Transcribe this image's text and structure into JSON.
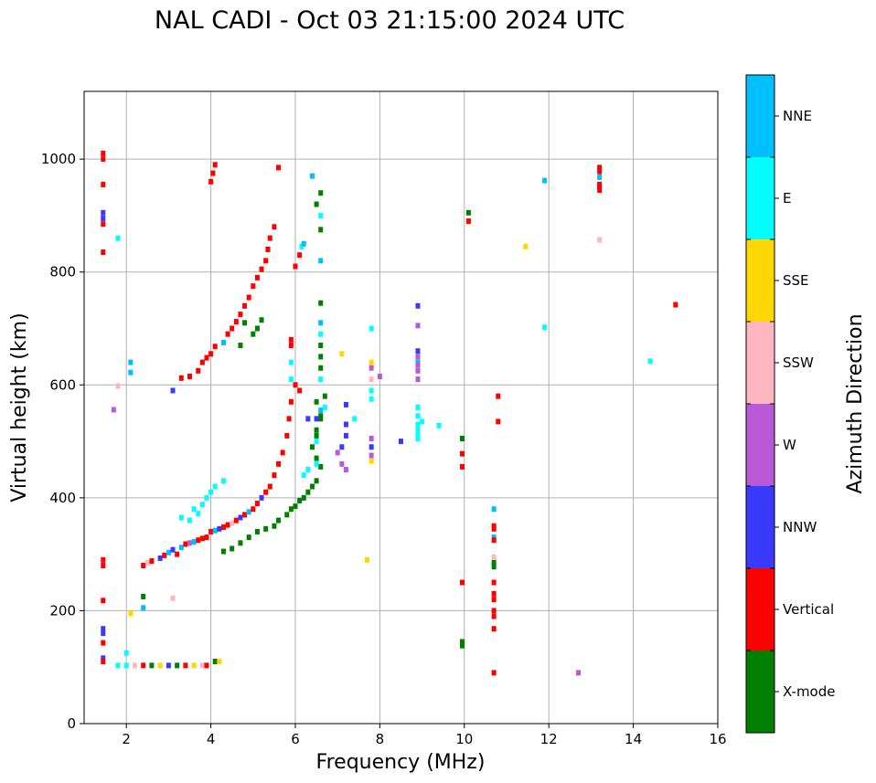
{
  "chart_data": {
    "type": "scatter",
    "title": "NAL CADI - Oct 03 21:15:00 2024 UTC",
    "xlabel": "Frequency (MHz)",
    "ylabel": "Virtual height (km)",
    "xlim": [
      1,
      16
    ],
    "ylim": [
      0,
      1120
    ],
    "xticks": [
      2,
      4,
      6,
      8,
      10,
      12,
      14,
      16
    ],
    "yticks": [
      0,
      200,
      400,
      600,
      800,
      1000
    ],
    "grid": true,
    "colorbar": {
      "label": "Azimuth Direction",
      "categories": [
        {
          "name": "X-mode",
          "color": "#008000"
        },
        {
          "name": "Vertical",
          "color": "#ff0000"
        },
        {
          "name": "NNW",
          "color": "#3a3aff"
        },
        {
          "name": "W",
          "color": "#b85ad6"
        },
        {
          "name": "SSW",
          "color": "#ffb6c1"
        },
        {
          "name": "SSE",
          "color": "#ffd700"
        },
        {
          "name": "E",
          "color": "#00ffff"
        },
        {
          "name": "NNE",
          "color": "#00bfff"
        }
      ]
    },
    "points": [
      [
        1.45,
        1010,
        1
      ],
      [
        1.45,
        1000,
        1
      ],
      [
        1.45,
        955,
        1
      ],
      [
        1.45,
        905,
        2
      ],
      [
        1.45,
        895,
        2
      ],
      [
        1.45,
        885,
        1
      ],
      [
        1.45,
        835,
        1
      ],
      [
        1.45,
        290,
        1
      ],
      [
        1.45,
        280,
        1
      ],
      [
        1.45,
        218,
        1
      ],
      [
        1.45,
        168,
        2
      ],
      [
        1.45,
        160,
        2
      ],
      [
        1.45,
        143,
        1
      ],
      [
        1.45,
        116,
        2
      ],
      [
        1.45,
        110,
        1
      ],
      [
        1.8,
        860,
        6
      ],
      [
        1.8,
        598,
        4
      ],
      [
        1.7,
        556,
        3
      ],
      [
        2.1,
        640,
        7
      ],
      [
        2.1,
        622,
        7
      ],
      [
        2.1,
        195,
        5
      ],
      [
        1.8,
        103,
        6
      ],
      [
        2.0,
        103,
        6
      ],
      [
        2.2,
        103,
        4
      ],
      [
        2.4,
        103,
        1
      ],
      [
        2.6,
        103,
        0
      ],
      [
        2.8,
        103,
        5
      ],
      [
        3.0,
        103,
        2
      ],
      [
        3.2,
        103,
        0
      ],
      [
        3.4,
        103,
        1
      ],
      [
        3.6,
        103,
        5
      ],
      [
        3.8,
        103,
        4
      ],
      [
        3.9,
        103,
        1
      ],
      [
        4.1,
        110,
        0
      ],
      [
        4.2,
        110,
        5
      ],
      [
        2.0,
        125,
        6
      ],
      [
        2.4,
        225,
        0
      ],
      [
        2.4,
        205,
        7
      ],
      [
        3.1,
        222,
        4
      ],
      [
        2.4,
        280,
        1
      ],
      [
        2.5,
        285,
        4
      ],
      [
        2.6,
        288,
        1
      ],
      [
        2.8,
        293,
        2
      ],
      [
        2.9,
        298,
        1
      ],
      [
        3.0,
        303,
        7
      ],
      [
        3.1,
        308,
        2
      ],
      [
        3.2,
        300,
        1
      ],
      [
        3.3,
        312,
        7
      ],
      [
        3.4,
        318,
        1
      ],
      [
        3.5,
        320,
        3
      ],
      [
        3.6,
        322,
        7
      ],
      [
        3.7,
        325,
        1
      ],
      [
        3.8,
        328,
        1
      ],
      [
        3.9,
        330,
        1
      ],
      [
        3.5,
        360,
        6
      ],
      [
        3.7,
        372,
        6
      ],
      [
        3.8,
        388,
        6
      ],
      [
        3.9,
        400,
        6
      ],
      [
        4.0,
        410,
        6
      ],
      [
        4.1,
        420,
        6
      ],
      [
        4.3,
        430,
        6
      ],
      [
        3.6,
        380,
        6
      ],
      [
        3.3,
        365,
        6
      ],
      [
        4.0,
        340,
        1
      ],
      [
        4.1,
        342,
        7
      ],
      [
        4.2,
        345,
        2
      ],
      [
        4.3,
        348,
        1
      ],
      [
        4.4,
        352,
        1
      ],
      [
        4.5,
        355,
        4
      ],
      [
        4.6,
        360,
        1
      ],
      [
        4.7,
        365,
        2
      ],
      [
        4.8,
        370,
        1
      ],
      [
        4.9,
        375,
        7
      ],
      [
        5.0,
        380,
        1
      ],
      [
        5.1,
        390,
        1
      ],
      [
        5.2,
        400,
        2
      ],
      [
        5.3,
        410,
        1
      ],
      [
        5.4,
        420,
        1
      ],
      [
        5.5,
        440,
        1
      ],
      [
        5.6,
        460,
        1
      ],
      [
        5.7,
        480,
        1
      ],
      [
        5.8,
        510,
        1
      ],
      [
        5.85,
        540,
        1
      ],
      [
        5.9,
        570,
        1
      ],
      [
        6.0,
        600,
        1
      ],
      [
        6.1,
        590,
        1
      ],
      [
        4.3,
        305,
        0
      ],
      [
        4.5,
        310,
        0
      ],
      [
        4.7,
        320,
        0
      ],
      [
        4.9,
        330,
        0
      ],
      [
        5.1,
        340,
        0
      ],
      [
        5.3,
        345,
        0
      ],
      [
        5.5,
        350,
        0
      ],
      [
        5.6,
        360,
        0
      ],
      [
        5.8,
        370,
        0
      ],
      [
        5.9,
        380,
        0
      ],
      [
        6.0,
        385,
        0
      ],
      [
        6.1,
        395,
        0
      ],
      [
        6.2,
        400,
        0
      ],
      [
        6.3,
        410,
        0
      ],
      [
        6.4,
        420,
        0
      ],
      [
        6.5,
        430,
        0
      ],
      [
        6.6,
        455,
        0
      ],
      [
        6.5,
        470,
        0
      ],
      [
        6.4,
        490,
        0
      ],
      [
        6.5,
        510,
        0
      ],
      [
        6.6,
        540,
        0
      ],
      [
        6.7,
        580,
        0
      ],
      [
        6.2,
        440,
        6
      ],
      [
        6.3,
        450,
        6
      ],
      [
        6.5,
        460,
        6
      ],
      [
        6.3,
        540,
        2
      ],
      [
        6.5,
        540,
        2
      ],
      [
        6.6,
        555,
        7
      ],
      [
        6.7,
        560,
        6
      ],
      [
        3.1,
        590,
        2
      ],
      [
        3.3,
        612,
        1
      ],
      [
        3.5,
        615,
        1
      ],
      [
        3.7,
        625,
        1
      ],
      [
        3.8,
        640,
        1
      ],
      [
        3.9,
        648,
        1
      ],
      [
        4.0,
        655,
        1
      ],
      [
        4.1,
        668,
        1
      ],
      [
        4.3,
        675,
        7
      ],
      [
        4.4,
        690,
        1
      ],
      [
        4.5,
        700,
        1
      ],
      [
        4.6,
        712,
        1
      ],
      [
        4.7,
        725,
        1
      ],
      [
        4.8,
        740,
        1
      ],
      [
        4.9,
        755,
        1
      ],
      [
        5.0,
        775,
        1
      ],
      [
        5.1,
        790,
        1
      ],
      [
        5.2,
        805,
        1
      ],
      [
        5.3,
        820,
        1
      ],
      [
        5.35,
        840,
        1
      ],
      [
        5.4,
        860,
        1
      ],
      [
        5.5,
        880,
        1
      ],
      [
        5.6,
        985,
        1
      ],
      [
        5.1,
        700,
        0
      ],
      [
        5.0,
        690,
        0
      ],
      [
        5.2,
        715,
        0
      ],
      [
        4.8,
        710,
        0
      ],
      [
        4.7,
        670,
        0
      ],
      [
        4.05,
        975,
        1
      ],
      [
        4.1,
        990,
        1
      ],
      [
        4.0,
        960,
        1
      ],
      [
        5.9,
        680,
        1
      ],
      [
        5.9,
        670,
        1
      ],
      [
        5.9,
        640,
        6
      ],
      [
        5.9,
        610,
        6
      ],
      [
        6.0,
        810,
        1
      ],
      [
        6.1,
        830,
        1
      ],
      [
        6.15,
        845,
        6
      ],
      [
        6.2,
        850,
        7
      ],
      [
        6.5,
        920,
        0
      ],
      [
        6.6,
        940,
        0
      ],
      [
        6.4,
        970,
        7
      ],
      [
        6.6,
        900,
        6
      ],
      [
        6.6,
        875,
        0
      ],
      [
        6.6,
        820,
        7
      ],
      [
        6.6,
        745,
        0
      ],
      [
        6.6,
        710,
        7
      ],
      [
        6.6,
        690,
        6
      ],
      [
        6.6,
        670,
        0
      ],
      [
        6.6,
        650,
        0
      ],
      [
        6.6,
        630,
        0
      ],
      [
        6.6,
        610,
        6
      ],
      [
        6.5,
        570,
        0
      ],
      [
        6.6,
        545,
        0
      ],
      [
        6.5,
        520,
        0
      ],
      [
        6.5,
        500,
        6
      ],
      [
        7.2,
        565,
        2
      ],
      [
        7.2,
        530,
        2
      ],
      [
        7.2,
        510,
        2
      ],
      [
        7.1,
        490,
        2
      ],
      [
        7.0,
        480,
        3
      ],
      [
        7.1,
        460,
        3
      ],
      [
        7.2,
        450,
        3
      ],
      [
        7.1,
        655,
        5
      ],
      [
        7.4,
        540,
        6
      ],
      [
        7.8,
        700,
        6
      ],
      [
        7.8,
        640,
        5
      ],
      [
        7.8,
        630,
        3
      ],
      [
        7.8,
        610,
        4
      ],
      [
        7.8,
        590,
        6
      ],
      [
        7.8,
        575,
        6
      ],
      [
        7.8,
        505,
        3
      ],
      [
        7.8,
        490,
        2
      ],
      [
        7.8,
        475,
        3
      ],
      [
        7.8,
        465,
        5
      ],
      [
        7.7,
        290,
        5
      ],
      [
        8.0,
        615,
        3
      ],
      [
        8.5,
        500,
        2
      ],
      [
        8.9,
        740,
        2
      ],
      [
        8.9,
        705,
        3
      ],
      [
        8.9,
        660,
        2
      ],
      [
        8.9,
        650,
        3
      ],
      [
        8.9,
        640,
        7
      ],
      [
        8.9,
        635,
        3
      ],
      [
        8.9,
        625,
        3
      ],
      [
        8.9,
        610,
        3
      ],
      [
        8.9,
        560,
        6
      ],
      [
        8.9,
        545,
        6
      ],
      [
        8.9,
        530,
        6
      ],
      [
        8.9,
        520,
        6
      ],
      [
        8.9,
        510,
        6
      ],
      [
        8.9,
        505,
        6
      ],
      [
        9.0,
        535,
        6
      ],
      [
        9.4,
        528,
        6
      ],
      [
        9.95,
        505,
        0
      ],
      [
        9.95,
        478,
        1
      ],
      [
        9.95,
        455,
        1
      ],
      [
        9.95,
        250,
        1
      ],
      [
        9.95,
        145,
        0
      ],
      [
        9.95,
        138,
        0
      ],
      [
        10.1,
        905,
        0
      ],
      [
        10.1,
        890,
        1
      ],
      [
        10.7,
        380,
        7
      ],
      [
        10.7,
        350,
        1
      ],
      [
        10.7,
        345,
        1
      ],
      [
        10.7,
        330,
        7
      ],
      [
        10.7,
        325,
        1
      ],
      [
        10.7,
        295,
        4
      ],
      [
        10.7,
        285,
        0
      ],
      [
        10.7,
        278,
        0
      ],
      [
        10.7,
        250,
        1
      ],
      [
        10.7,
        230,
        1
      ],
      [
        10.7,
        220,
        1
      ],
      [
        10.7,
        200,
        1
      ],
      [
        10.7,
        190,
        1
      ],
      [
        10.7,
        168,
        1
      ],
      [
        10.7,
        90,
        1
      ],
      [
        10.8,
        580,
        1
      ],
      [
        10.8,
        535,
        1
      ],
      [
        11.45,
        845,
        5
      ],
      [
        11.9,
        962,
        7
      ],
      [
        11.9,
        702,
        6
      ],
      [
        12.7,
        90,
        3
      ],
      [
        14.4,
        642,
        6
      ],
      [
        15.0,
        742,
        1
      ],
      [
        13.2,
        985,
        1
      ],
      [
        13.2,
        978,
        1
      ],
      [
        13.2,
        968,
        7
      ],
      [
        13.2,
        955,
        1
      ],
      [
        13.2,
        950,
        1
      ],
      [
        13.2,
        945,
        1
      ],
      [
        13.2,
        857,
        4
      ]
    ]
  }
}
